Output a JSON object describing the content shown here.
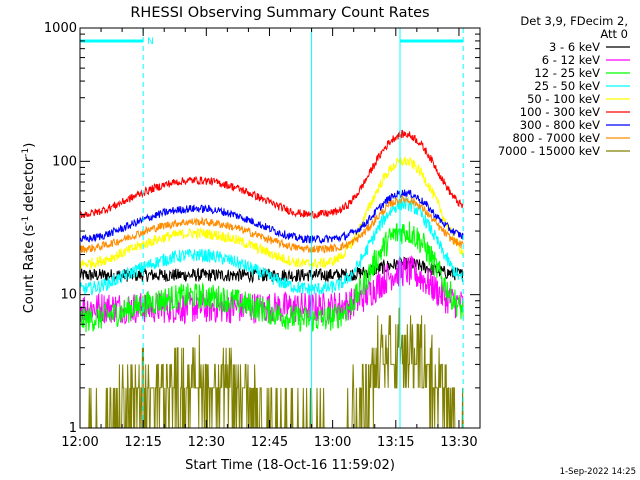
{
  "chart_data": {
    "type": "line",
    "title": "RHESSI Observing Summary Count Rates",
    "xlabel": "Start Time (18-Oct-16 11:59:02)",
    "ylabel_main": "Count Rate (s",
    "ylabel_sup1": "-1",
    "ylabel_mid": " detector",
    "ylabel_sup2": "-1",
    "ylabel_end": ")",
    "x_ticks": [
      "12:00",
      "12:15",
      "12:30",
      "12:45",
      "13:00",
      "13:15",
      "13:30"
    ],
    "x_tick_minutes": [
      0,
      15,
      30,
      45,
      60,
      75,
      90
    ],
    "xlim_minutes": [
      0,
      95
    ],
    "y_scale": "log",
    "y_ticks": [
      "1",
      "10",
      "100",
      "1000"
    ],
    "y_tick_values": [
      1,
      10,
      100,
      1000
    ],
    "ylim": [
      1,
      1000
    ],
    "legend_header": [
      "Det 3,9, FDecim 2,",
      "Att 0"
    ],
    "series": [
      {
        "name": "3 - 6 keV",
        "color": "#000000",
        "base": 14,
        "orbit_amp": 1.0,
        "flare_peak": 17,
        "noise": 0.05
      },
      {
        "name": "6 - 12 keV",
        "color": "#ff00ff",
        "base": 8,
        "orbit_amp": 1.0,
        "flare_peak": 15,
        "noise": 0.12
      },
      {
        "name": "12 - 25 keV",
        "color": "#00ff00",
        "base": 6.5,
        "orbit_amp": 1.5,
        "flare_peak": 30,
        "noise": 0.1
      },
      {
        "name": "25 - 50 keV",
        "color": "#00ffff",
        "base": 11,
        "orbit_amp": 1.8,
        "flare_peak": 48,
        "noise": 0.05
      },
      {
        "name": "50 - 100 keV",
        "color": "#ffff00",
        "base": 17,
        "orbit_amp": 1.7,
        "flare_peak": 100,
        "noise": 0.04
      },
      {
        "name": "100 - 300 keV",
        "color": "#ff0000",
        "base": 40,
        "orbit_amp": 1.8,
        "flare_peak": 160,
        "noise": 0.03
      },
      {
        "name": "300 - 800 keV",
        "color": "#0000ff",
        "base": 26,
        "orbit_amp": 1.7,
        "flare_peak": 58,
        "noise": 0.03
      },
      {
        "name": "800 - 7000 keV",
        "color": "#ff8c00",
        "base": 22,
        "orbit_amp": 1.6,
        "flare_peak": 52,
        "noise": 0.03
      },
      {
        "name": "7000 - 15000 keV",
        "color": "#808000",
        "base": 1,
        "orbit_amp": 2.5,
        "flare_peak": 5,
        "noise": 0.2
      }
    ],
    "orbit_peak_minute": 28,
    "flare_peak_minute": 77,
    "data_window_minutes": [
      0,
      91
    ],
    "attenuator_bar_minutes": [
      [
        0,
        15
      ],
      [
        76,
        91
      ]
    ],
    "bar_marker": "N",
    "vlines_solid_minutes": [
      55,
      76
    ],
    "vlines_dashed_minutes": [
      15,
      91
    ],
    "vline_color": "#00ffff",
    "grid": false,
    "legend_position": "right"
  },
  "footer": {
    "date_stamp": "1-Sep-2022 14:25"
  }
}
